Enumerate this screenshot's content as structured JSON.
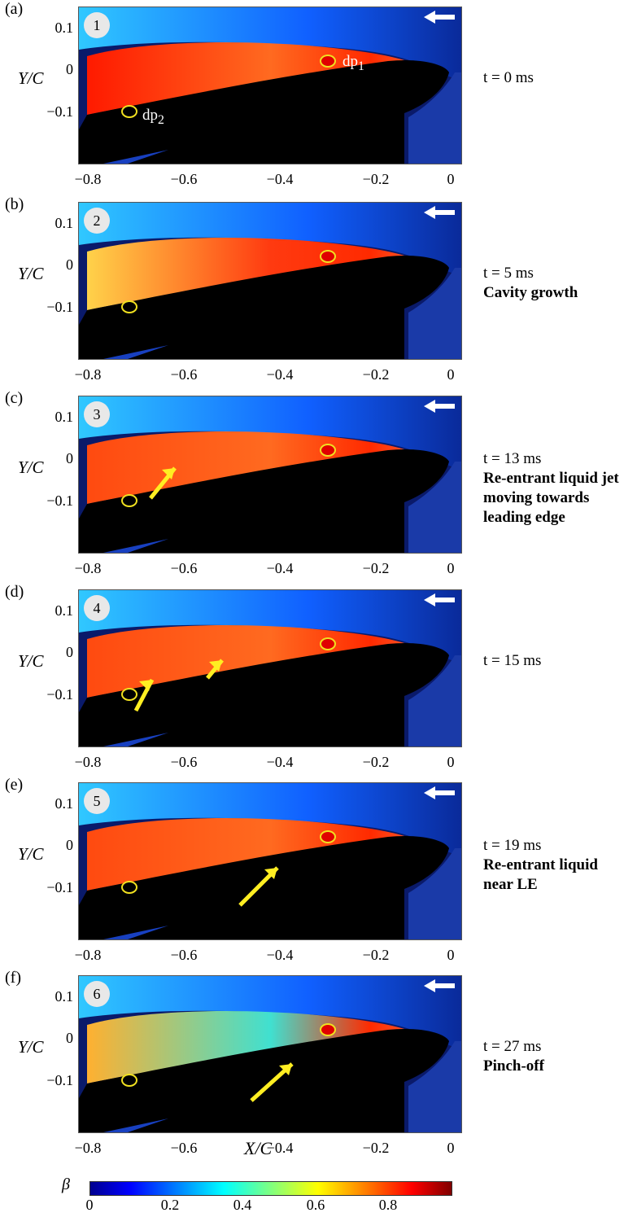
{
  "panels": [
    {
      "label": "(a)",
      "frame": "1",
      "time": "t = 0 ms",
      "description": [],
      "dp1_label": "dp",
      "dp1_sub": "1",
      "dp2_label": "dp",
      "dp2_sub": "2",
      "beta_tone": "red-peak",
      "arrows": 0
    },
    {
      "label": "(b)",
      "frame": "2",
      "time": "t = 5 ms",
      "description": [
        "Cavity growth"
      ],
      "beta_tone": "growth",
      "arrows": 0
    },
    {
      "label": "(c)",
      "frame": "3",
      "time": "t = 13 ms",
      "description": [
        "Re-entrant liquid jet",
        "moving towards",
        "leading edge"
      ],
      "beta_tone": "full",
      "arrows": 1
    },
    {
      "label": "(d)",
      "frame": "4",
      "time": "t = 15 ms",
      "description": [],
      "beta_tone": "full",
      "arrows": 2
    },
    {
      "label": "(e)",
      "frame": "5",
      "time": "t = 19 ms",
      "description": [
        "Re-entrant liquid",
        "near LE"
      ],
      "beta_tone": "full",
      "arrows": 1
    },
    {
      "label": "(f)",
      "frame": "6",
      "time": "t = 27 ms",
      "description": [
        "Pinch-off"
      ],
      "beta_tone": "fading",
      "arrows": 1
    }
  ],
  "axes": {
    "ylabel": "Y/C",
    "xlabel": "X/C",
    "yticks": [
      "0.1",
      "0",
      "−0.1"
    ],
    "xticks": [
      "−0.8",
      "−0.6",
      "−0.4",
      "−0.2",
      "0"
    ]
  },
  "colorbar": {
    "symbol": "β",
    "ticks": [
      "0",
      "0.2",
      "0.4",
      "0.6",
      "0.8"
    ],
    "colors": [
      "#00008f",
      "#0000ff",
      "#0080ff",
      "#00ffff",
      "#80ff80",
      "#ffff00",
      "#ff8000",
      "#ff0000",
      "#800000"
    ]
  },
  "marker_colors": {
    "dp1_fill": "#e00000",
    "ring": "#f0e020",
    "arrow": "#ffee22",
    "flow_arrow": "#ffffff"
  }
}
